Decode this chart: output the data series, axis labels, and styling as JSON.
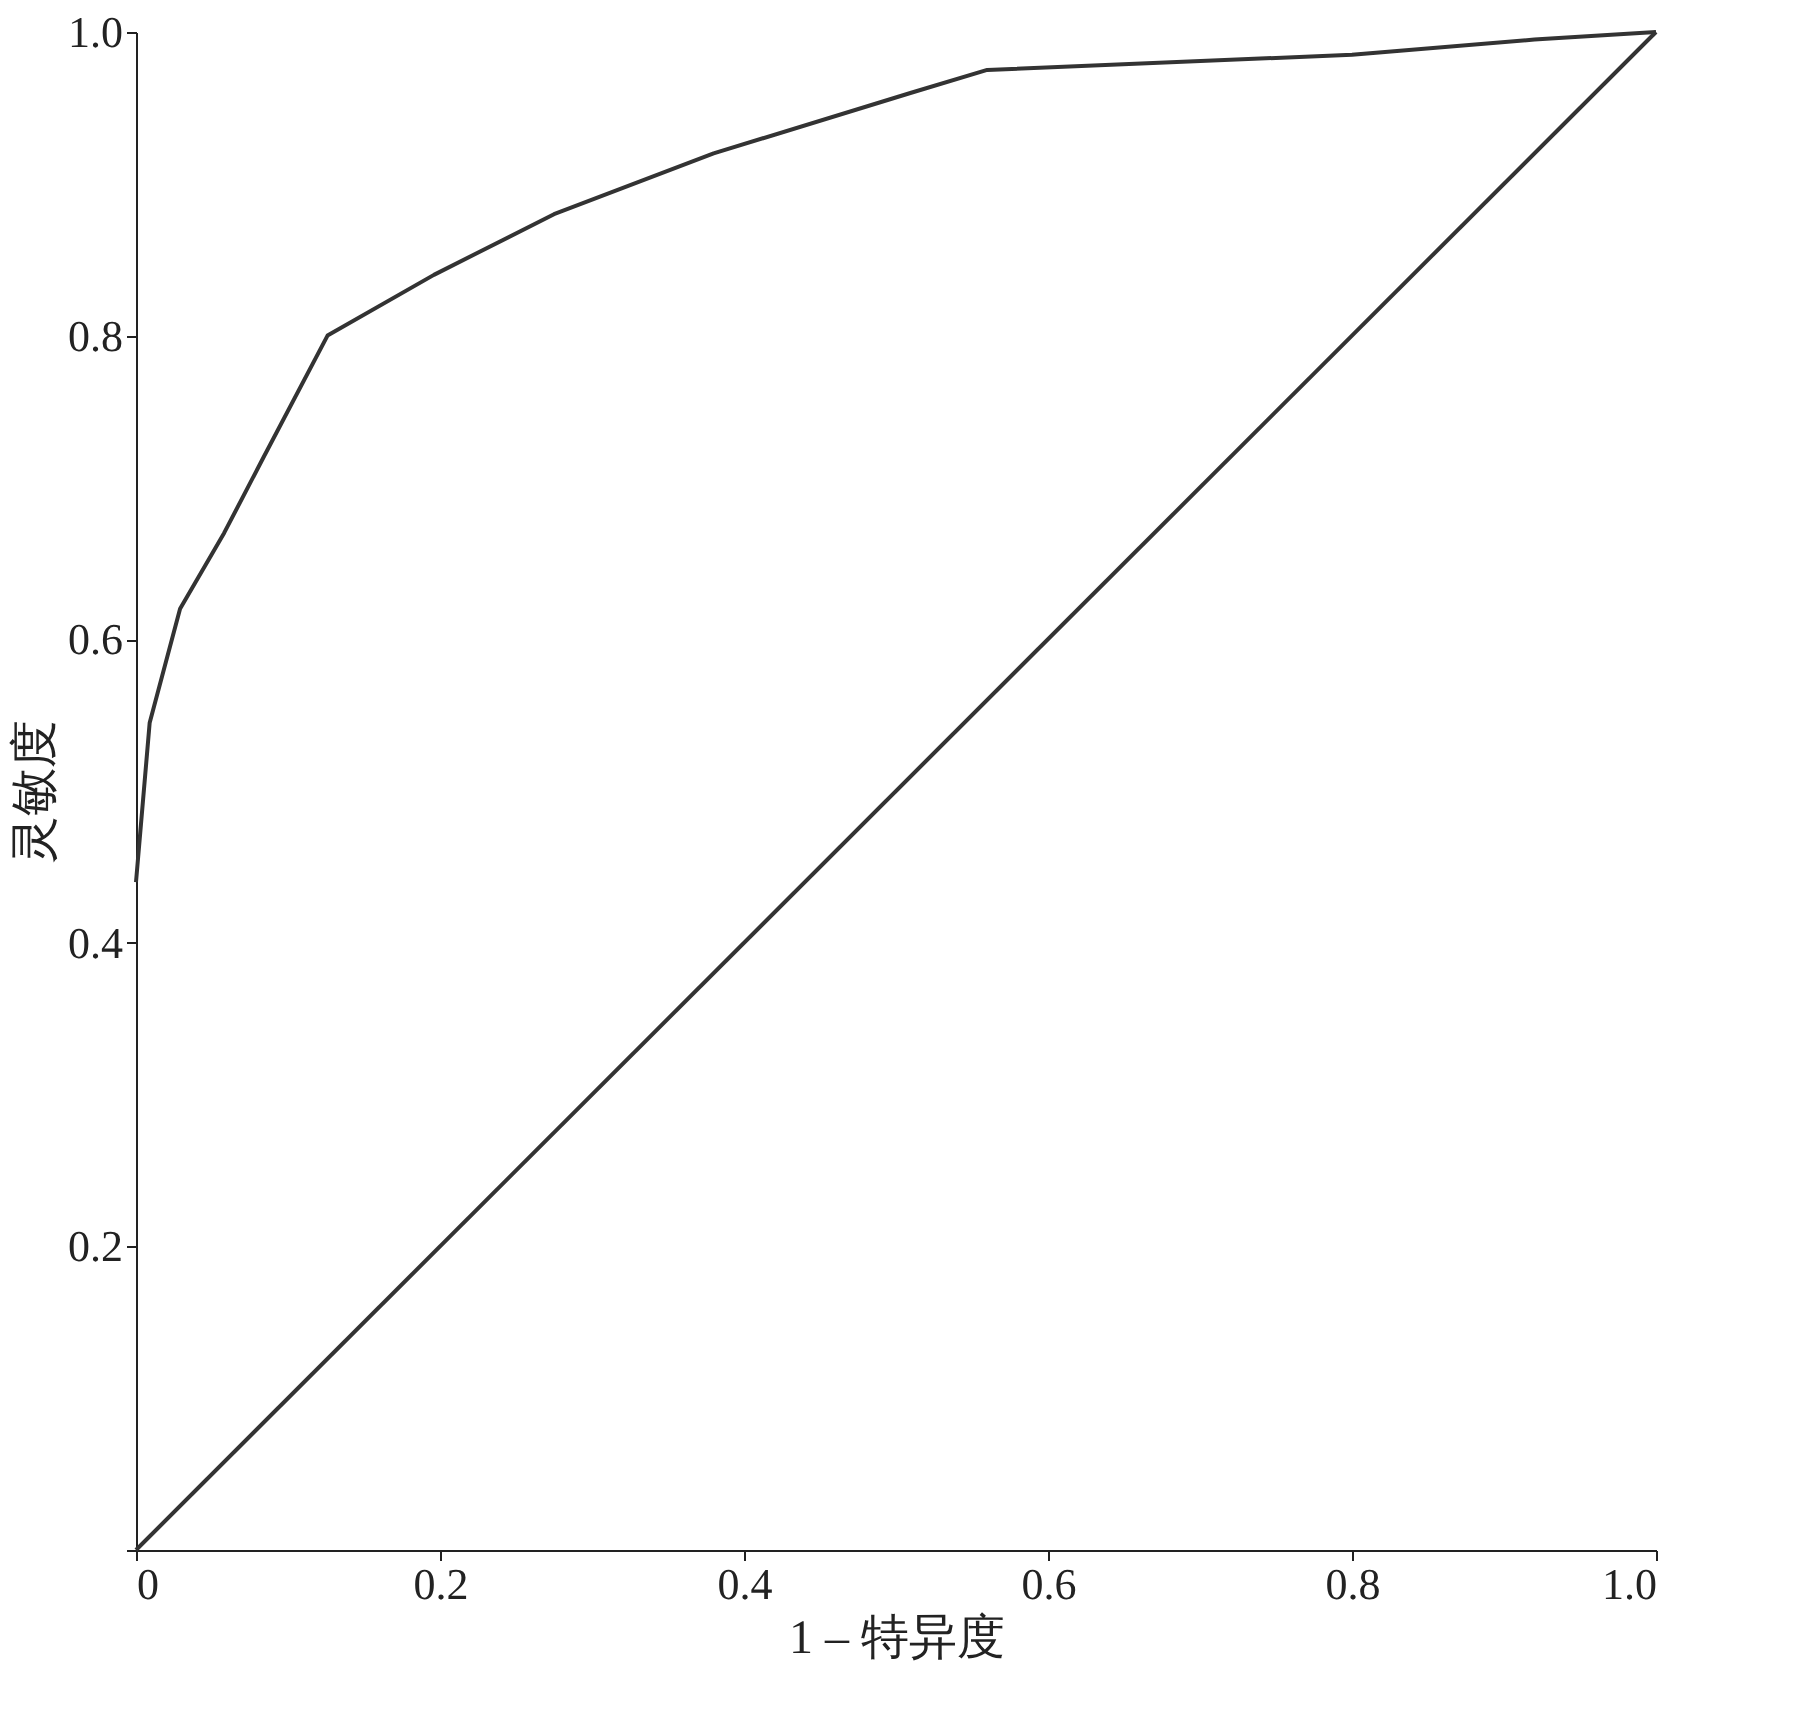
{
  "chart_data": {
    "type": "line",
    "xlabel": "1 – 特异度",
    "ylabel": "灵敏度",
    "xlim": [
      0,
      1
    ],
    "ylim": [
      0,
      1
    ],
    "xticks": [
      0,
      0.2,
      0.4,
      0.6,
      0.8,
      {
        "value": 1,
        "label": "1.0"
      }
    ],
    "yticks": [
      {
        "value": 0,
        "label": null
      },
      0.2,
      0.4,
      0.6,
      0.8,
      {
        "value": 1,
        "label": "1.0"
      }
    ],
    "grid": false,
    "marker": "none",
    "line_style": "solid",
    "series": [
      {
        "color": "#333333",
        "x": [
          0,
          0.009,
          0.029,
          0.058,
          0.084,
          0.126,
          0.196,
          0.275,
          0.38,
          0.51,
          0.56,
          0.8,
          0.92,
          1
        ],
        "values": [
          0.44,
          0.545,
          0.62,
          0.67,
          0.72,
          0.8,
          0.84,
          0.88,
          0.92,
          0.96,
          0.975,
          0.985,
          0.995,
          1
        ]
      },
      {
        "color": "#333333",
        "x": [
          0,
          1
        ],
        "values": [
          0,
          1
        ]
      }
    ]
  }
}
